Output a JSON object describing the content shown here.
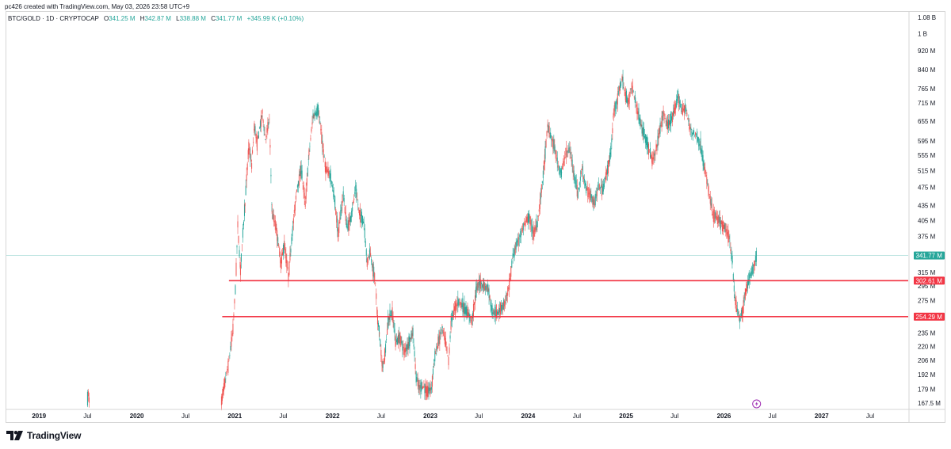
{
  "header": {
    "credit": "pc426 created with TradingView.com, May 03, 2026 23:58 UTC+9"
  },
  "legend": {
    "symbol": "BTC/GOLD · 1D · CRYPTOCAP",
    "open_key": "O",
    "open": "341.25 M",
    "high_key": "H",
    "high": "342.87 M",
    "low_key": "L",
    "low": "338.88 M",
    "close_key": "C",
    "close": "341.77 M",
    "change": "+345.99 K (+0.10%)"
  },
  "brand": {
    "name": "TradingView"
  },
  "colors": {
    "up": "#26a69a",
    "down": "#ef5350",
    "level": "#f23645",
    "current": "#26a69a"
  },
  "icons": {
    "event": "lightning-icon",
    "logo": "tradingview-logo-icon"
  },
  "chart_data": {
    "type": "candlestick",
    "y_scale": "log",
    "ylim": [
      163,
      1110
    ],
    "xlim": [
      "2018-09-01",
      "2027-11-20"
    ],
    "y_ticks": [
      {
        "v": 1080,
        "label": "1.08 B"
      },
      {
        "v": 1000,
        "label": "1 B"
      },
      {
        "v": 920,
        "label": "920 M"
      },
      {
        "v": 840,
        "label": "840 M"
      },
      {
        "v": 765,
        "label": "765 M"
      },
      {
        "v": 715,
        "label": "715 M"
      },
      {
        "v": 655,
        "label": "655 M"
      },
      {
        "v": 595,
        "label": "595 M"
      },
      {
        "v": 555,
        "label": "555 M"
      },
      {
        "v": 515,
        "label": "515 M"
      },
      {
        "v": 475,
        "label": "475 M"
      },
      {
        "v": 435,
        "label": "435 M"
      },
      {
        "v": 405,
        "label": "405 M"
      },
      {
        "v": 375,
        "label": "375 M"
      },
      {
        "v": 315,
        "label": "315 M"
      },
      {
        "v": 295,
        "label": "295 M"
      },
      {
        "v": 275,
        "label": "275 M"
      },
      {
        "v": 255,
        "label": "255 M"
      },
      {
        "v": 235,
        "label": "235 M"
      },
      {
        "v": 220,
        "label": "220 M"
      },
      {
        "v": 206,
        "label": "206 M"
      },
      {
        "v": 192,
        "label": "192 M"
      },
      {
        "v": 179,
        "label": "179 M"
      },
      {
        "v": 167.5,
        "label": "167.5 M"
      }
    ],
    "x_ticks": [
      {
        "date": "2019-01-01",
        "label": "2019",
        "year": true
      },
      {
        "date": "2019-07-01",
        "label": "Jul",
        "year": false
      },
      {
        "date": "2020-01-01",
        "label": "2020",
        "year": true
      },
      {
        "date": "2020-07-01",
        "label": "Jul",
        "year": false
      },
      {
        "date": "2021-01-01",
        "label": "2021",
        "year": true
      },
      {
        "date": "2021-07-01",
        "label": "Jul",
        "year": false
      },
      {
        "date": "2022-01-01",
        "label": "2022",
        "year": true
      },
      {
        "date": "2022-07-01",
        "label": "Jul",
        "year": false
      },
      {
        "date": "2023-01-01",
        "label": "2023",
        "year": true
      },
      {
        "date": "2023-07-01",
        "label": "Jul",
        "year": false
      },
      {
        "date": "2024-01-01",
        "label": "2024",
        "year": true
      },
      {
        "date": "2024-07-01",
        "label": "Jul",
        "year": false
      },
      {
        "date": "2025-01-01",
        "label": "2025",
        "year": true
      },
      {
        "date": "2025-07-01",
        "label": "Jul",
        "year": false
      },
      {
        "date": "2026-01-01",
        "label": "2026",
        "year": true
      },
      {
        "date": "2026-07-01",
        "label": "Jul",
        "year": false
      },
      {
        "date": "2027-01-01",
        "label": "2027",
        "year": true
      },
      {
        "date": "2027-07-01",
        "label": "Jul",
        "year": false
      }
    ],
    "levels": [
      {
        "value": 302.61,
        "label": "302.61 M",
        "from": "2020-12-10",
        "color": "#f23645"
      },
      {
        "value": 254.29,
        "label": "254.29 M",
        "from": "2020-11-15",
        "color": "#f23645"
      }
    ],
    "last_price": {
      "value": 341.77,
      "label": "341.77 M",
      "color": "#26a69a"
    },
    "event_marker_date": "2026-05-03",
    "path": [
      [
        "2019-07-01",
        170
      ],
      [
        "2019-07-04",
        175
      ],
      [
        "2019-07-08",
        168
      ],
      [
        "2020-11-12",
        170
      ],
      [
        "2020-11-25",
        185
      ],
      [
        "2020-12-10",
        205
      ],
      [
        "2020-12-25",
        240
      ],
      [
        "2021-01-03",
        290
      ],
      [
        "2021-01-12",
        395
      ],
      [
        "2021-01-22",
        320
      ],
      [
        "2021-02-08",
        440
      ],
      [
        "2021-02-22",
        580
      ],
      [
        "2021-03-05",
        530
      ],
      [
        "2021-03-15",
        640
      ],
      [
        "2021-03-25",
        590
      ],
      [
        "2021-04-14",
        680
      ],
      [
        "2021-04-25",
        600
      ],
      [
        "2021-05-10",
        660
      ],
      [
        "2021-05-20",
        420
      ],
      [
        "2021-06-05",
        390
      ],
      [
        "2021-06-22",
        330
      ],
      [
        "2021-07-05",
        360
      ],
      [
        "2021-07-20",
        310
      ],
      [
        "2021-08-05",
        390
      ],
      [
        "2021-08-20",
        470
      ],
      [
        "2021-09-06",
        520
      ],
      [
        "2021-09-21",
        440
      ],
      [
        "2021-10-05",
        560
      ],
      [
        "2021-10-20",
        670
      ],
      [
        "2021-11-09",
        690
      ],
      [
        "2021-11-25",
        580
      ],
      [
        "2021-12-06",
        520
      ],
      [
        "2021-12-25",
        500
      ],
      [
        "2022-01-10",
        440
      ],
      [
        "2022-01-22",
        380
      ],
      [
        "2022-02-10",
        460
      ],
      [
        "2022-02-24",
        390
      ],
      [
        "2022-03-10",
        410
      ],
      [
        "2022-03-28",
        470
      ],
      [
        "2022-04-11",
        420
      ],
      [
        "2022-04-28",
        400
      ],
      [
        "2022-05-10",
        330
      ],
      [
        "2022-05-20",
        350
      ],
      [
        "2022-06-10",
        300
      ],
      [
        "2022-06-18",
        250
      ],
      [
        "2022-06-25",
        235
      ],
      [
        "2022-07-05",
        200
      ],
      [
        "2022-07-15",
        210
      ],
      [
        "2022-07-28",
        250
      ],
      [
        "2022-08-12",
        260
      ],
      [
        "2022-08-25",
        225
      ],
      [
        "2022-09-10",
        230
      ],
      [
        "2022-09-25",
        215
      ],
      [
        "2022-10-10",
        222
      ],
      [
        "2022-10-28",
        235
      ],
      [
        "2022-11-09",
        190
      ],
      [
        "2022-11-20",
        180
      ],
      [
        "2022-12-05",
        182
      ],
      [
        "2022-12-20",
        177
      ],
      [
        "2023-01-05",
        180
      ],
      [
        "2023-01-15",
        205
      ],
      [
        "2023-01-30",
        225
      ],
      [
        "2023-02-15",
        240
      ],
      [
        "2023-03-01",
        222
      ],
      [
        "2023-03-10",
        205
      ],
      [
        "2023-03-20",
        250
      ],
      [
        "2023-04-05",
        268
      ],
      [
        "2023-04-20",
        275
      ],
      [
        "2023-05-05",
        265
      ],
      [
        "2023-05-20",
        258
      ],
      [
        "2023-06-05",
        250
      ],
      [
        "2023-06-22",
        290
      ],
      [
        "2023-07-05",
        300
      ],
      [
        "2023-07-20",
        295
      ],
      [
        "2023-08-05",
        290
      ],
      [
        "2023-08-20",
        260
      ],
      [
        "2023-09-05",
        258
      ],
      [
        "2023-09-20",
        265
      ],
      [
        "2023-10-05",
        270
      ],
      [
        "2023-10-20",
        290
      ],
      [
        "2023-11-05",
        340
      ],
      [
        "2023-11-20",
        360
      ],
      [
        "2023-12-05",
        380
      ],
      [
        "2023-12-20",
        400
      ],
      [
        "2024-01-05",
        410
      ],
      [
        "2024-01-20",
        380
      ],
      [
        "2024-02-05",
        400
      ],
      [
        "2024-02-20",
        470
      ],
      [
        "2024-03-05",
        560
      ],
      [
        "2024-03-14",
        640
      ],
      [
        "2024-03-25",
        610
      ],
      [
        "2024-04-10",
        570
      ],
      [
        "2024-04-25",
        520
      ],
      [
        "2024-05-05",
        510
      ],
      [
        "2024-05-20",
        560
      ],
      [
        "2024-06-05",
        570
      ],
      [
        "2024-06-20",
        510
      ],
      [
        "2024-07-05",
        460
      ],
      [
        "2024-07-20",
        520
      ],
      [
        "2024-08-05",
        470
      ],
      [
        "2024-08-20",
        460
      ],
      [
        "2024-09-05",
        440
      ],
      [
        "2024-09-20",
        480
      ],
      [
        "2024-10-05",
        470
      ],
      [
        "2024-10-20",
        510
      ],
      [
        "2024-11-05",
        560
      ],
      [
        "2024-11-15",
        680
      ],
      [
        "2024-11-30",
        730
      ],
      [
        "2024-12-10",
        780
      ],
      [
        "2024-12-17",
        800
      ],
      [
        "2024-12-30",
        740
      ],
      [
        "2025-01-10",
        720
      ],
      [
        "2025-01-22",
        780
      ],
      [
        "2025-02-05",
        720
      ],
      [
        "2025-02-20",
        660
      ],
      [
        "2025-03-05",
        620
      ],
      [
        "2025-03-20",
        590
      ],
      [
        "2025-04-08",
        540
      ],
      [
        "2025-04-20",
        560
      ],
      [
        "2025-05-05",
        620
      ],
      [
        "2025-05-20",
        680
      ],
      [
        "2025-06-05",
        640
      ],
      [
        "2025-06-20",
        660
      ],
      [
        "2025-07-05",
        700
      ],
      [
        "2025-07-14",
        740
      ],
      [
        "2025-07-28",
        690
      ],
      [
        "2025-08-10",
        700
      ],
      [
        "2025-08-25",
        640
      ],
      [
        "2025-09-05",
        620
      ],
      [
        "2025-09-20",
        610
      ],
      [
        "2025-10-06",
        580
      ],
      [
        "2025-10-20",
        520
      ],
      [
        "2025-11-05",
        470
      ],
      [
        "2025-11-20",
        420
      ],
      [
        "2025-12-05",
        410
      ],
      [
        "2025-12-20",
        400
      ],
      [
        "2026-01-05",
        390
      ],
      [
        "2026-01-20",
        375
      ],
      [
        "2026-02-02",
        330
      ],
      [
        "2026-02-10",
        280
      ],
      [
        "2026-02-20",
        262
      ],
      [
        "2026-03-01",
        250
      ],
      [
        "2026-03-12",
        262
      ],
      [
        "2026-03-22",
        285
      ],
      [
        "2026-04-05",
        305
      ],
      [
        "2026-04-20",
        320
      ],
      [
        "2026-05-03",
        341.77
      ]
    ]
  }
}
